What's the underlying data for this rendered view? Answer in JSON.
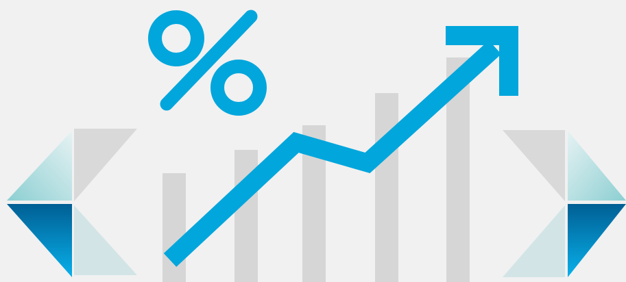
{
  "illustration": {
    "icon": "percent-icon",
    "trend_arrow_icon": "trend-up-arrow-icon",
    "left_ornament_icon": "chevron-left-triangles-icon",
    "right_ornament_icon": "chevron-right-triangles-icon",
    "bar_count": 5
  },
  "colors": {
    "background": "#f1f1f1",
    "accent_blue": "#00a6dc",
    "bar_gray": "#d6d6d6",
    "triangle_gray": "#d9d9d9",
    "triangle_light_teal": "#d2e4e6",
    "triangle_teal_start": "#8ccfd2",
    "triangle_teal_end": "#e6f2f3",
    "triangle_blue_start": "#005f94",
    "triangle_blue_end": "#08b0ea"
  }
}
